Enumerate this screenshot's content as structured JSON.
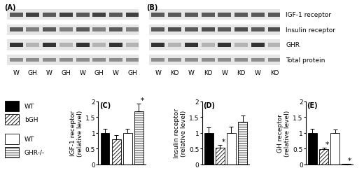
{
  "blots": [
    {
      "label": "(A)",
      "lanes": [
        "W",
        "GH",
        "W",
        "GH",
        "W",
        "GH",
        "W",
        "GH"
      ]
    },
    {
      "label": "(B)",
      "lanes": [
        "W",
        "KO",
        "W",
        "KO",
        "W",
        "KO",
        "W",
        "KO"
      ]
    }
  ],
  "blot_rows": [
    "IGF-1 receptor",
    "Insulin receptor",
    "GHR",
    "Total protein"
  ],
  "key": [
    {
      "name": "WT",
      "color": "#000000"
    },
    {
      "name": "bGH",
      "color": "#ffffff"
    },
    {
      "name": "WT",
      "color": "#ffffff"
    },
    {
      "name": "GHR-/-",
      "color": "#ffffff"
    }
  ],
  "chart_data": [
    {
      "type": "bar",
      "title": "(C)",
      "y_label": "IGF-1 receptor\n(relative level)",
      "categories": [
        null,
        null,
        null,
        null
      ],
      "values": [
        1.0,
        0.8,
        1.0,
        1.68
      ],
      "errors": [
        0.13,
        0.12,
        0.13,
        0.25
      ],
      "colors": [
        "#000000",
        "#ffffff",
        "#ffffff",
        "#ffffff"
      ],
      "significance": [
        null,
        null,
        null,
        "*"
      ],
      "ylim": [
        0,
        2
      ],
      "yticks": [
        0,
        0.5,
        1,
        1.5,
        2
      ],
      "tick_labels": "y"
    },
    {
      "type": "bar",
      "title": "(D)",
      "y_label": "Insulin receptor\n(relative level)",
      "categories": [
        null,
        null,
        null,
        null
      ],
      "values": [
        1.0,
        0.53,
        1.0,
        1.35
      ],
      "errors": [
        0.18,
        0.08,
        0.2,
        0.2
      ],
      "colors": [
        "#000000",
        "#ffffff",
        "#ffffff",
        "#ffffff"
      ],
      "significance": [
        null,
        "*",
        null,
        null
      ],
      "ylim": [
        0,
        2
      ],
      "yticks": [
        0,
        0.5,
        1,
        1.5,
        2
      ],
      "tick_labels": "y"
    },
    {
      "type": "bar",
      "title": "(E)",
      "y_label": "GH receptor\n(relative level)",
      "categories": [
        null,
        null,
        null,
        null
      ],
      "values": [
        1.0,
        0.48,
        1.0,
        0.02
      ],
      "errors": [
        0.12,
        0.06,
        0.1,
        0.01
      ],
      "colors": [
        "#000000",
        "#ffffff",
        "#ffffff",
        "#ffffff"
      ],
      "significance": [
        null,
        "*",
        null,
        "*"
      ],
      "ylim": [
        0,
        2
      ],
      "yticks": [
        0,
        0.5,
        1,
        1.5,
        2
      ],
      "tick_labels": "y"
    }
  ]
}
